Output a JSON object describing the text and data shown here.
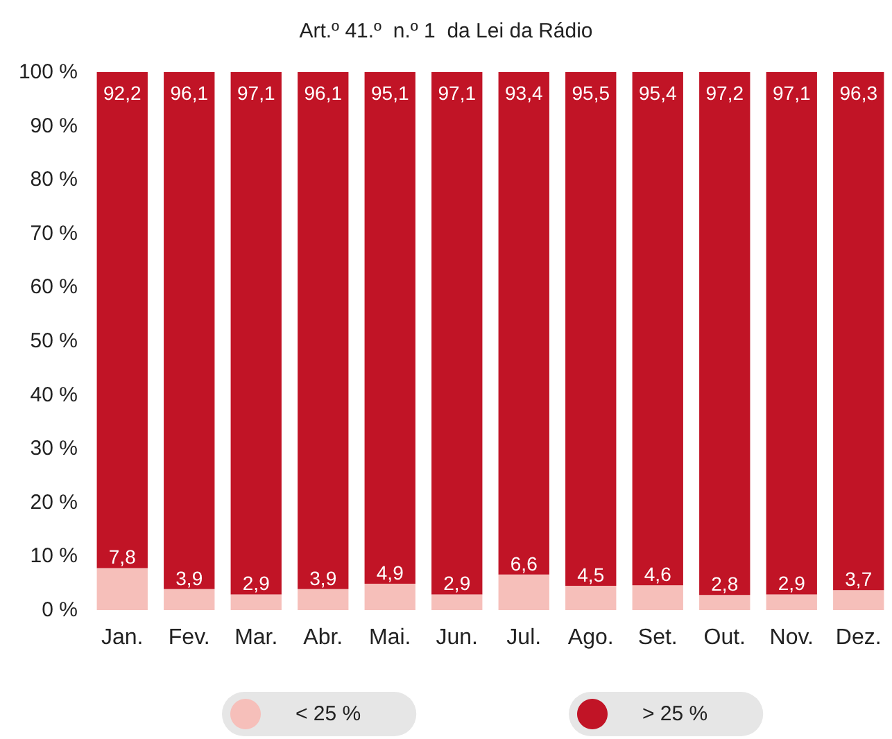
{
  "chart_data": {
    "type": "bar",
    "title": "Art.º 41.º  n.º 1  da Lei da Rádio",
    "stacked": true,
    "legend": "bottom",
    "grid": false,
    "categories": [
      "Jan.",
      "Fev.",
      "Mar.",
      "Abr.",
      "Mai.",
      "Jun.",
      "Jul.",
      "Ago.",
      "Set.",
      "Out.",
      "Nov.",
      "Dez."
    ],
    "ylim": [
      0,
      100
    ],
    "yticks": [
      {
        "value": 0,
        "label": "0 %"
      },
      {
        "value": 10,
        "label": "10 %"
      },
      {
        "value": 20,
        "label": "20 %"
      },
      {
        "value": 30,
        "label": "30 %"
      },
      {
        "value": 40,
        "label": "40 %"
      },
      {
        "value": 50,
        "label": "50 %"
      },
      {
        "value": 60,
        "label": "60 %"
      },
      {
        "value": 70,
        "label": "70 %"
      },
      {
        "value": 80,
        "label": "80 %"
      },
      {
        "value": 90,
        "label": "90 %"
      },
      {
        "value": 100,
        "label": "100 %"
      }
    ],
    "series": [
      {
        "name": "< 25 %",
        "color": "#f6bfba",
        "values": [
          7.8,
          3.9,
          2.9,
          3.9,
          4.9,
          2.9,
          6.6,
          4.5,
          4.6,
          2.8,
          2.9,
          3.7
        ],
        "value_labels": [
          "7,8",
          "3,9",
          "2,9",
          "3,9",
          "4,9",
          "2,9",
          "6,6",
          "4,5",
          "4,6",
          "2,8",
          "2,9",
          "3,7"
        ]
      },
      {
        "name": "> 25 %",
        "color": "#c11426",
        "values": [
          92.2,
          96.1,
          97.1,
          96.1,
          95.1,
          97.1,
          93.4,
          95.5,
          95.4,
          97.2,
          97.1,
          96.3
        ],
        "value_labels": [
          "92,2",
          "96,1",
          "97,1",
          "96,1",
          "95,1",
          "97,1",
          "93,4",
          "95,5",
          "95,4",
          "97,2",
          "97,1",
          "96,3"
        ]
      }
    ]
  }
}
